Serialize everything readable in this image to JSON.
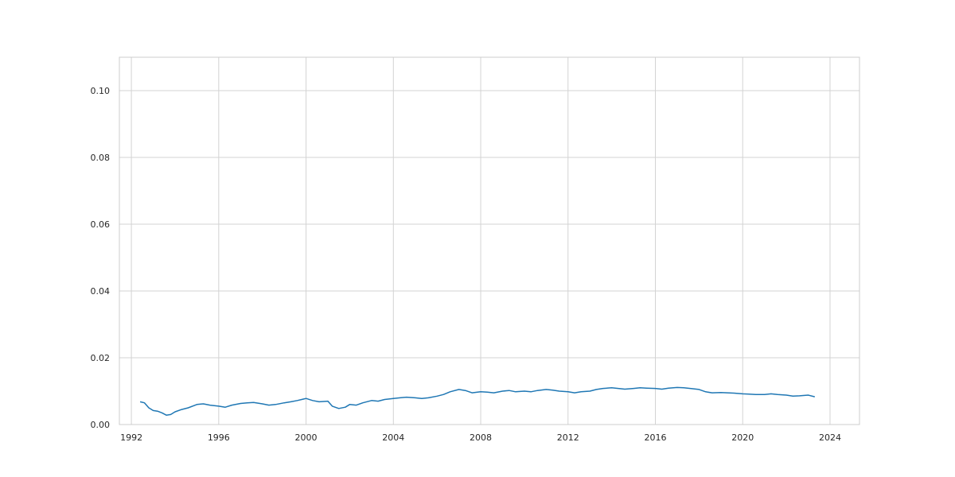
{
  "chart_data": {
    "type": "line",
    "title": "",
    "xlabel": "",
    "ylabel": "",
    "xlim": [
      1991.45,
      2025.35
    ],
    "ylim": [
      0,
      0.11
    ],
    "grid": true,
    "x_ticks": [
      1992,
      1996,
      2000,
      2004,
      2008,
      2012,
      2016,
      2020,
      2024
    ],
    "x_tick_labels": [
      "1992",
      "1996",
      "2000",
      "2004",
      "2008",
      "2012",
      "2016",
      "2020",
      "2024"
    ],
    "y_ticks": [
      0,
      0.02,
      0.04,
      0.06,
      0.08,
      0.1
    ],
    "y_tick_labels": [
      "0.00",
      "0.02",
      "0.04",
      "0.06",
      "0.08",
      "0.10"
    ],
    "series": [
      {
        "name": "series",
        "color": "#1f77b4",
        "x": [
          1992.4,
          1992.6,
          1992.8,
          1993.0,
          1993.2,
          1993.4,
          1993.6,
          1993.8,
          1994.0,
          1994.3,
          1994.6,
          1995.0,
          1995.3,
          1995.6,
          1996.0,
          1996.3,
          1996.6,
          1997.0,
          1997.3,
          1997.6,
          1998.0,
          1998.3,
          1998.6,
          1999.0,
          1999.3,
          1999.6,
          2000.0,
          2000.3,
          2000.6,
          2001.0,
          2001.2,
          2001.5,
          2001.8,
          2002.0,
          2002.3,
          2002.6,
          2003.0,
          2003.3,
          2003.6,
          2004.0,
          2004.3,
          2004.6,
          2005.0,
          2005.3,
          2005.6,
          2006.0,
          2006.3,
          2006.6,
          2007.0,
          2007.3,
          2007.6,
          2008.0,
          2008.3,
          2008.6,
          2009.0,
          2009.3,
          2009.6,
          2010.0,
          2010.3,
          2010.6,
          2011.0,
          2011.3,
          2011.6,
          2012.0,
          2012.3,
          2012.6,
          2013.0,
          2013.3,
          2013.6,
          2014.0,
          2014.3,
          2014.6,
          2015.0,
          2015.3,
          2015.6,
          2016.0,
          2016.3,
          2016.6,
          2017.0,
          2017.3,
          2017.6,
          2018.0,
          2018.3,
          2018.6,
          2019.0,
          2019.3,
          2019.6,
          2020.0,
          2020.3,
          2020.6,
          2021.0,
          2021.3,
          2021.6,
          2022.0,
          2022.3,
          2022.6,
          2023.0,
          2023.3
        ],
        "values": [
          0.0068,
          0.0065,
          0.005,
          0.0042,
          0.004,
          0.0035,
          0.0028,
          0.003,
          0.0038,
          0.0045,
          0.005,
          0.006,
          0.0062,
          0.0058,
          0.0055,
          0.0052,
          0.0058,
          0.0063,
          0.0065,
          0.0066,
          0.0062,
          0.0058,
          0.006,
          0.0065,
          0.0068,
          0.0072,
          0.0078,
          0.0072,
          0.0068,
          0.007,
          0.0055,
          0.0048,
          0.0052,
          0.006,
          0.0058,
          0.0065,
          0.0072,
          0.007,
          0.0075,
          0.0078,
          0.008,
          0.0082,
          0.008,
          0.0078,
          0.008,
          0.0085,
          0.009,
          0.0098,
          0.0105,
          0.0102,
          0.0095,
          0.0098,
          0.0097,
          0.0095,
          0.01,
          0.0102,
          0.0098,
          0.01,
          0.0098,
          0.0102,
          0.0105,
          0.0103,
          0.01,
          0.0098,
          0.0095,
          0.0098,
          0.01,
          0.0105,
          0.0108,
          0.011,
          0.0108,
          0.0106,
          0.0108,
          0.011,
          0.0109,
          0.0108,
          0.0106,
          0.0109,
          0.0111,
          0.011,
          0.0108,
          0.0105,
          0.0098,
          0.0095,
          0.0096,
          0.0095,
          0.0094,
          0.0092,
          0.0091,
          0.009,
          0.009,
          0.0092,
          0.009,
          0.0088,
          0.0085,
          0.0086,
          0.0088,
          0.0083
        ]
      }
    ]
  }
}
